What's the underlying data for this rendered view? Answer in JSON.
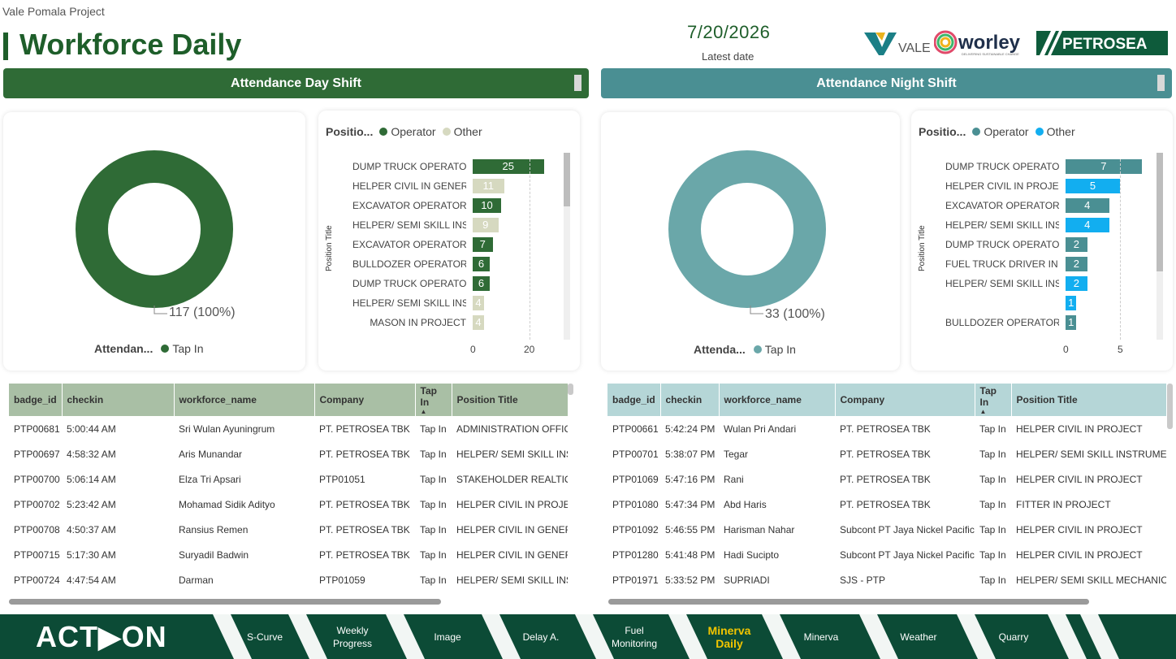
{
  "header": {
    "project": "Vale Pomala Project",
    "title": "Workforce Daily",
    "date": "7/20/2026",
    "date_label": "Latest date",
    "logos": {
      "vale": "VALE",
      "worley": "worley",
      "worley_tagline": "DELIVERING SUSTAINABLE CHANGE",
      "petrosea": "PETROSEA"
    }
  },
  "day": {
    "header": "Attendance Day Shift",
    "donut": {
      "value_label": "117 (100%)",
      "legend_title": "Attendan...",
      "legend_item": "Tap In",
      "color": "#2f6b36"
    },
    "bars": {
      "legend_title": "Positio...",
      "legend": [
        "Operator",
        "Other"
      ],
      "colors": {
        "Operator": "#2f6b36",
        "Other": "#d6d9c0"
      },
      "y_title": "Position Title",
      "x_ticks": [
        "0",
        "20"
      ],
      "items": [
        {
          "label": "DUMP TRUCK OPERATO...",
          "value": 25,
          "type": "Operator"
        },
        {
          "label": "HELPER CIVIL IN GENER...",
          "value": 11,
          "type": "Other"
        },
        {
          "label": "EXCAVATOR OPERATOR ...",
          "value": 10,
          "type": "Operator"
        },
        {
          "label": "HELPER/ SEMI SKILL INS...",
          "value": 9,
          "type": "Other"
        },
        {
          "label": "EXCAVATOR OPERATOR ...",
          "value": 7,
          "type": "Operator"
        },
        {
          "label": "BULLDOZER OPERATOR ...",
          "value": 6,
          "type": "Operator"
        },
        {
          "label": "DUMP TRUCK OPERATO...",
          "value": 6,
          "type": "Operator"
        },
        {
          "label": "HELPER/ SEMI SKILL INS...",
          "value": 4,
          "type": "Other"
        },
        {
          "label": "MASON IN PROJECT",
          "value": 4,
          "type": "Other"
        }
      ]
    },
    "table": {
      "columns": [
        "badge_id",
        "checkin",
        "workforce_name",
        "Company",
        "Tap In",
        "Position Title"
      ],
      "rows": [
        [
          "PTP00681",
          "5:00:44 AM",
          "Sri Wulan Ayuningrum",
          "PT. PETROSEA TBK",
          "Tap In",
          "ADMINISTRATION OFFICE"
        ],
        [
          "PTP00697",
          "4:58:32 AM",
          "Aris Munandar",
          "PT. PETROSEA TBK",
          "Tap In",
          "HELPER/ SEMI SKILL INST"
        ],
        [
          "PTP00700",
          "5:06:14 AM",
          "Elza Tri Apsari",
          "PTP01051",
          "Tap In",
          "STAKEHOLDER REALTION"
        ],
        [
          "PTP00702",
          "5:23:42 AM",
          "Mohamad Sidik Adityo",
          "PT. PETROSEA TBK",
          "Tap In",
          "HELPER CIVIL IN PROJECT"
        ],
        [
          "PTP00708",
          "4:50:37 AM",
          "Ransius Remen",
          "PT. PETROSEA TBK",
          "Tap In",
          "HELPER CIVIL IN GENERA"
        ],
        [
          "PTP00715",
          "5:17:30 AM",
          "Suryadil Badwin",
          "PT. PETROSEA TBK",
          "Tap In",
          "HELPER CIVIL IN GENERA"
        ],
        [
          "PTP00724",
          "4:47:54 AM",
          "Darman",
          "PTP01059",
          "Tap In",
          "HELPER/ SEMI SKILL INST"
        ]
      ]
    }
  },
  "night": {
    "header": "Attendance Night Shift",
    "donut": {
      "value_label": "33 (100%)",
      "legend_title": "Attenda...",
      "legend_item": "Tap In",
      "color": "#6aa7a9"
    },
    "bars": {
      "legend_title": "Positio...",
      "legend": [
        "Operator",
        "Other"
      ],
      "colors": {
        "Operator": "#4a8f93",
        "Other": "#12aef0"
      },
      "y_title": "Position Title",
      "x_ticks": [
        "0",
        "5"
      ],
      "items": [
        {
          "label": "DUMP TRUCK OPERATO...",
          "value": 7,
          "type": "Operator"
        },
        {
          "label": "HELPER CIVIL IN PROJECT",
          "value": 5,
          "type": "Other"
        },
        {
          "label": "EXCAVATOR OPERATOR ...",
          "value": 4,
          "type": "Operator"
        },
        {
          "label": "HELPER/ SEMI SKILL INS...",
          "value": 4,
          "type": "Other"
        },
        {
          "label": "DUMP TRUCK OPERATO...",
          "value": 2,
          "type": "Operator"
        },
        {
          "label": "FUEL TRUCK DRIVER IN ...",
          "value": 2,
          "type": "Operator"
        },
        {
          "label": "HELPER/ SEMI SKILL INS...",
          "value": 2,
          "type": "Other"
        },
        {
          "label": "",
          "value": 1,
          "type": "Other"
        },
        {
          "label": "BULLDOZER OPERATOR ...",
          "value": 1,
          "type": "Operator"
        }
      ]
    },
    "table": {
      "columns": [
        "badge_id",
        "checkin",
        "workforce_name",
        "Company",
        "Tap In",
        "Position Title"
      ],
      "rows": [
        [
          "PTP00661",
          "5:42:24 PM",
          "Wulan Pri Andari",
          "PT. PETROSEA TBK",
          "Tap In",
          "HELPER CIVIL IN PROJECT"
        ],
        [
          "PTP00701",
          "5:38:07 PM",
          "Tegar",
          "PT. PETROSEA TBK",
          "Tap In",
          "HELPER/ SEMI SKILL INSTRUMENT"
        ],
        [
          "PTP01069",
          "5:47:16 PM",
          "Rani",
          "PT. PETROSEA TBK",
          "Tap In",
          "HELPER CIVIL IN PROJECT"
        ],
        [
          "PTP01080",
          "5:47:34 PM",
          "Abd Haris",
          "PT. PETROSEA TBK",
          "Tap In",
          "FITTER IN PROJECT"
        ],
        [
          "PTP01092",
          "5:46:55 PM",
          "Harisman Nahar",
          "Subcont PT Jaya Nickel Pacific",
          "Tap In",
          "HELPER CIVIL IN PROJECT"
        ],
        [
          "PTP01280",
          "5:41:48 PM",
          "Hadi Sucipto",
          "Subcont PT Jaya Nickel Pacific",
          "Tap In",
          "HELPER CIVIL IN PROJECT"
        ],
        [
          "PTP01971",
          "5:33:52 PM",
          "SUPRIADI",
          "SJS - PTP",
          "Tap In",
          "HELPER/ SEMI SKILL MECHANIC IN"
        ]
      ]
    }
  },
  "footer": {
    "brand": "ACT▶ON",
    "nav": [
      {
        "label": "S-Curve",
        "active": false
      },
      {
        "label": "Weekly Progress",
        "active": false
      },
      {
        "label": "Image",
        "active": false
      },
      {
        "label": "Delay A.",
        "active": false
      },
      {
        "label": "Fuel Monitoring",
        "active": false
      },
      {
        "label": "Minerva Daily",
        "active": true
      },
      {
        "label": "Minerva",
        "active": false
      },
      {
        "label": "Weather",
        "active": false
      },
      {
        "label": "Quarry",
        "active": false
      }
    ],
    "active_color": "#f2c500"
  }
}
